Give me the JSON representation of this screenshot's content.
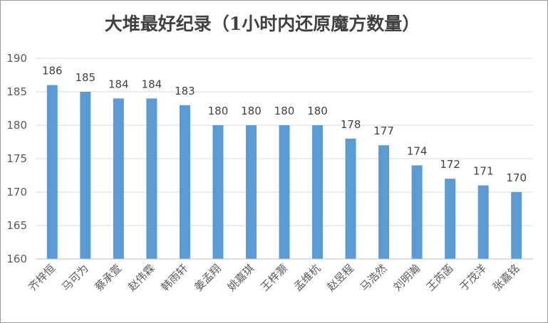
{
  "chart_data": {
    "type": "bar",
    "title": "大堆最好纪录（1小时内还原魔方数量）",
    "xlabel": "",
    "ylabel": "",
    "categories": [
      "齐梓恒",
      "马可为",
      "蔡承萱",
      "赵伟霖",
      "韩雨轩",
      "姜孟翔",
      "姚嘉琪",
      "王梓灏",
      "孟维杭",
      "赵昱程",
      "马浩然",
      "刘明瀚",
      "王芮菡",
      "于茂洋",
      "张嘉铭"
    ],
    "values": [
      186,
      185,
      184,
      184,
      183,
      180,
      180,
      180,
      180,
      178,
      177,
      174,
      172,
      171,
      170
    ],
    "ylim": [
      160,
      190
    ],
    "yticks": [
      160,
      165,
      170,
      175,
      180,
      185,
      190
    ],
    "grid": true,
    "legend": "none",
    "data_labels": true,
    "colors": {
      "bar": "#5b9bd5",
      "grid": "#d9d9d9",
      "axis": "#bfbfbf"
    }
  }
}
